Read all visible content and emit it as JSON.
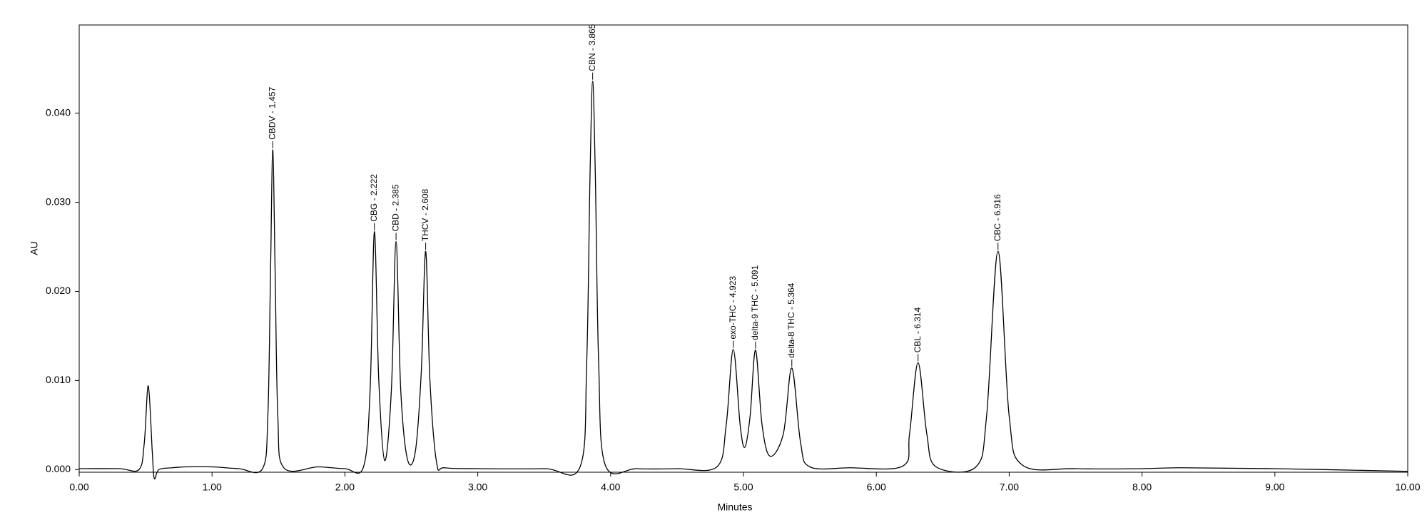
{
  "chart_data": {
    "type": "line",
    "y_label": "AU",
    "x_label": "Minutes",
    "xlim": [
      0,
      10
    ],
    "ylim": [
      -0.0003,
      0.0499
    ],
    "xticks": [
      {
        "value": 0,
        "label": "0.00"
      },
      {
        "value": 1,
        "label": "1.00"
      },
      {
        "value": 2,
        "label": "2.00"
      },
      {
        "value": 3,
        "label": "3.00"
      },
      {
        "value": 4,
        "label": "4.00"
      },
      {
        "value": 5,
        "label": "5.00"
      },
      {
        "value": 6,
        "label": "6.00"
      },
      {
        "value": 7,
        "label": "7.00"
      },
      {
        "value": 8,
        "label": "8.00"
      },
      {
        "value": 9,
        "label": "9.00"
      },
      {
        "value": 10,
        "label": "10.00"
      }
    ],
    "yticks": [
      {
        "value": 0,
        "label": "0.000"
      },
      {
        "value": 0.01,
        "label": "0.010"
      },
      {
        "value": 0.02,
        "label": "0.020"
      },
      {
        "value": 0.03,
        "label": "0.030"
      },
      {
        "value": 0.04,
        "label": "0.040"
      }
    ],
    "x": [
      0,
      0.3,
      0.45,
      0.49,
      0.52,
      0.55,
      0.565,
      0.6,
      0.7,
      0.8,
      1.0,
      1.2,
      1.38,
      1.42,
      1.44,
      1.457,
      1.475,
      1.495,
      1.54,
      1.8,
      2.0,
      2.14,
      2.19,
      2.222,
      2.255,
      2.3,
      2.35,
      2.385,
      2.42,
      2.47,
      2.53,
      2.575,
      2.608,
      2.64,
      2.69,
      2.75,
      3.0,
      3.5,
      3.77,
      3.82,
      3.845,
      3.865,
      3.885,
      3.91,
      3.96,
      4.2,
      4.5,
      4.8,
      4.87,
      4.923,
      4.975,
      5.01,
      5.05,
      5.091,
      5.14,
      5.2,
      5.3,
      5.364,
      5.43,
      5.5,
      5.8,
      6.2,
      6.25,
      6.314,
      6.38,
      6.45,
      6.75,
      6.83,
      6.916,
      7.0,
      7.1,
      7.5,
      8.0,
      8.3,
      9.0,
      10.0
    ],
    "series": [
      {
        "color": "#000000",
        "values": [
          0.0001,
          0.0001,
          0.0,
          0.003,
          0.0094,
          0.002,
          -0.001,
          0.0,
          0.0002,
          0.0003,
          0.0003,
          0.0001,
          0.0001,
          0.006,
          0.022,
          0.0359,
          0.022,
          0.006,
          0.0002,
          0.0003,
          0.0001,
          0.0003,
          0.009,
          0.0267,
          0.01,
          0.001,
          0.009,
          0.0256,
          0.009,
          0.0012,
          0.002,
          0.011,
          0.0245,
          0.01,
          0.0008,
          0.0002,
          0.0001,
          0.0001,
          0.0003,
          0.012,
          0.033,
          0.0436,
          0.033,
          0.012,
          0.0005,
          0.0001,
          0.0001,
          0.0003,
          0.005,
          0.0135,
          0.005,
          0.0025,
          0.006,
          0.0134,
          0.005,
          0.0015,
          0.004,
          0.0114,
          0.003,
          0.0003,
          0.0002,
          0.0004,
          0.004,
          0.012,
          0.004,
          0.0003,
          0.0003,
          0.006,
          0.0245,
          0.006,
          0.0005,
          0.0001,
          0.0001,
          0.0002,
          0.0001,
          -0.0002
        ]
      }
    ],
    "annotations": [
      {
        "text": "CBDV - 1.457",
        "x": 1.457,
        "y": 0.0359
      },
      {
        "text": "CBG - 2.222",
        "x": 2.222,
        "y": 0.0267
      },
      {
        "text": "CBD - 2.385",
        "x": 2.385,
        "y": 0.0256
      },
      {
        "text": "THCV - 2.608",
        "x": 2.608,
        "y": 0.0245
      },
      {
        "text": "CBN - 3.865",
        "x": 3.865,
        "y": 0.0436
      },
      {
        "text": "exo-THC - 4.923",
        "x": 4.923,
        "y": 0.0135
      },
      {
        "text": "delta-9 THC - 5.091",
        "x": 5.091,
        "y": 0.0134
      },
      {
        "text": "delta-8 THC - 5.364",
        "x": 5.364,
        "y": 0.0114
      },
      {
        "text": "CBL - 6.314",
        "x": 6.314,
        "y": 0.012
      },
      {
        "text": "CBC - 6.916",
        "x": 6.916,
        "y": 0.0245
      }
    ]
  }
}
